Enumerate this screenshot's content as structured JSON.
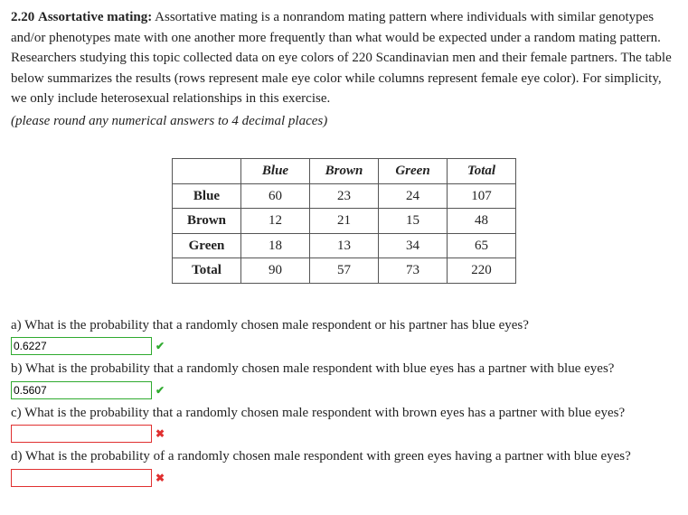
{
  "header": {
    "number": "2.20",
    "title": "Assortative mating:",
    "body": "Assortative mating is a nonrandom mating pattern where individuals with similar genotypes and/or phenotypes mate with one another more frequently than what would be expected under a random mating pattern. Researchers studying this topic collected data on eye colors of 220 Scandinavian men and their female partners. The table below summarizes the results (rows represent male eye color while columns represent female eye color). For simplicity, we only include heterosexual relationships in this exercise.",
    "note": "(please round any numerical answers to 4 decimal places)"
  },
  "table": {
    "col_headers": [
      "Blue",
      "Brown",
      "Green",
      "Total"
    ],
    "rows": [
      {
        "label": "Blue",
        "cells": [
          "60",
          "23",
          "24",
          "107"
        ]
      },
      {
        "label": "Brown",
        "cells": [
          "12",
          "21",
          "15",
          "48"
        ]
      },
      {
        "label": "Green",
        "cells": [
          "18",
          "13",
          "34",
          "65"
        ]
      },
      {
        "label": "Total",
        "cells": [
          "90",
          "57",
          "73",
          "220"
        ]
      }
    ]
  },
  "questions": {
    "a": {
      "text": "a) What is the probability that a randomly chosen male respondent or his partner has blue eyes?",
      "value": "0.6227",
      "status": "correct",
      "mark": "✔"
    },
    "b": {
      "text": "b) What is the probability that a randomly chosen male respondent with blue eyes has a partner with blue eyes?",
      "value": "0.5607",
      "status": "correct",
      "mark": "✔"
    },
    "c": {
      "text": "c) What is the probability that a randomly chosen male respondent with brown eyes has a partner with blue eyes?",
      "value": "",
      "status": "wrong",
      "mark": "✖"
    },
    "d": {
      "text": "d) What is the probability of a randomly chosen male respondent with green eyes having a partner with blue eyes?",
      "value": "",
      "status": "wrong",
      "mark": "✖"
    }
  }
}
